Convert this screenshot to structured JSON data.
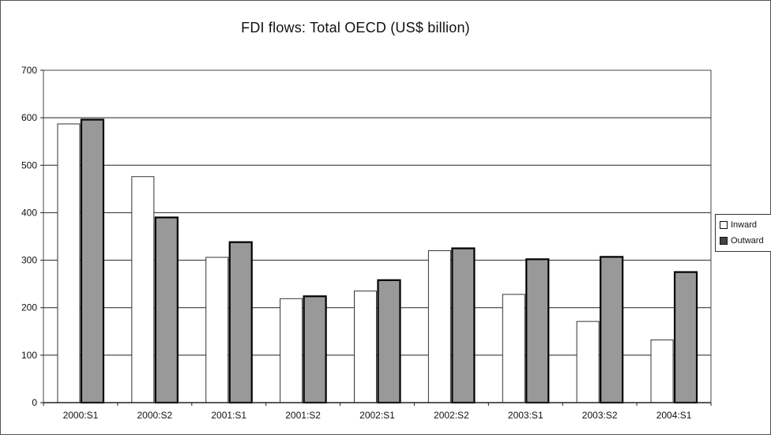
{
  "chart_data": {
    "type": "bar",
    "title": "FDI flows: Total OECD (US$ billion)",
    "xlabel": "",
    "ylabel": "",
    "categories": [
      "2000:S1",
      "2000:S2",
      "2001:S1",
      "2001:S2",
      "2002:S1",
      "2002:S2",
      "2003:S1",
      "2003:S2",
      "2004:S1"
    ],
    "series": [
      {
        "name": "Inward",
        "color": "#ffffff",
        "values": [
          587,
          476,
          306,
          219,
          235,
          320,
          228,
          171,
          132
        ]
      },
      {
        "name": "Outward",
        "color": "#999999",
        "values": [
          596,
          390,
          338,
          224,
          258,
          325,
          302,
          307,
          275
        ]
      }
    ],
    "ylim": [
      0,
      700
    ],
    "yticks": [
      0,
      100,
      200,
      300,
      400,
      500,
      600,
      700
    ],
    "grid": true,
    "legend_position": "right"
  }
}
